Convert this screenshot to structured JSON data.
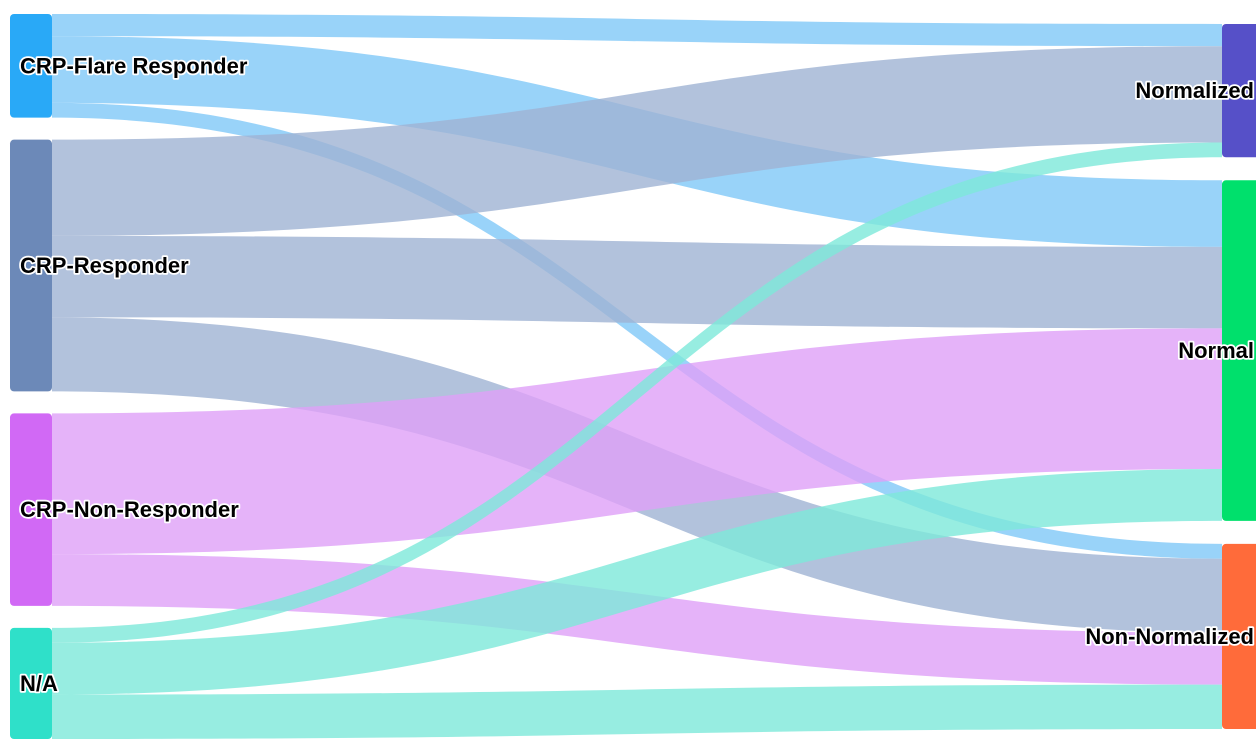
{
  "nodes": [
    {
      "id": "crp_flare",
      "label": "CRP-Flare Responder",
      "color": "#29a9f7",
      "side": "left"
    },
    {
      "id": "crp_resp",
      "label": "CRP-Responder",
      "color": "#6c89b8",
      "side": "left"
    },
    {
      "id": "crp_nonresp",
      "label": "CRP-Non-Responder",
      "color": "#d169f5",
      "side": "left"
    },
    {
      "id": "na",
      "label": "N/A",
      "color": "#2fe0c9",
      "side": "left"
    },
    {
      "id": "normalized",
      "label": "Normalized",
      "color": "#5650c8",
      "side": "right"
    },
    {
      "id": "normal",
      "label": "Normal",
      "color": "#00e06c",
      "side": "right"
    },
    {
      "id": "nonnormalized",
      "label": "Non-Normalized",
      "color": "#ff6b3a",
      "side": "right"
    }
  ],
  "links": [
    {
      "source": "crp_flare",
      "target": "normalized",
      "value": 3,
      "color": "#7fc8f8"
    },
    {
      "source": "crp_flare",
      "target": "normal",
      "value": 9,
      "color": "#7fc8f8"
    },
    {
      "source": "crp_flare",
      "target": "nonnormalized",
      "value": 2,
      "color": "#7fc8f8"
    },
    {
      "source": "crp_resp",
      "target": "normalized",
      "value": 13,
      "color": "#9fb3d3"
    },
    {
      "source": "crp_resp",
      "target": "normal",
      "value": 11,
      "color": "#9fb3d3"
    },
    {
      "source": "crp_resp",
      "target": "nonnormalized",
      "value": 10,
      "color": "#9fb3d3"
    },
    {
      "source": "crp_nonresp",
      "target": "normal",
      "value": 19,
      "color": "#dea0f8"
    },
    {
      "source": "crp_nonresp",
      "target": "nonnormalized",
      "value": 7,
      "color": "#dea0f8"
    },
    {
      "source": "na",
      "target": "normalized",
      "value": 2,
      "color": "#7de8da"
    },
    {
      "source": "na",
      "target": "normal",
      "value": 7,
      "color": "#7de8da"
    },
    {
      "source": "na",
      "target": "nonnormalized",
      "value": 6,
      "color": "#7de8da"
    }
  ]
}
